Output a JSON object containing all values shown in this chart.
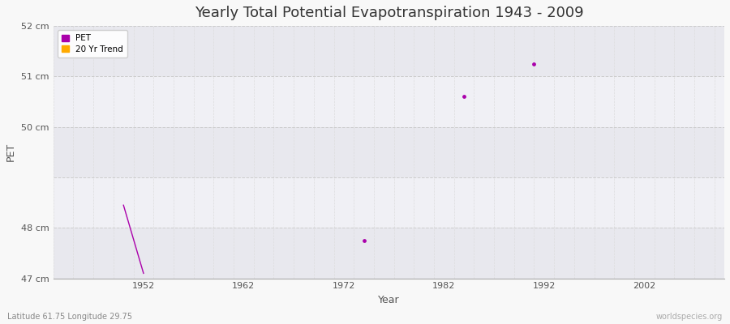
{
  "title": "Yearly Total Potential Evapotranspiration 1943 - 2009",
  "xlabel": "Year",
  "ylabel": "PET",
  "subtitle_lat_lon": "Latitude 61.75 Longitude 29.75",
  "watermark": "worldspecies.org",
  "xlim": [
    1943,
    2010
  ],
  "ylim": [
    47.0,
    52.0
  ],
  "yticks": [
    47,
    48,
    49,
    50,
    51,
    52
  ],
  "ytick_labels": [
    "47 cm",
    "48 cm",
    "",
    "50 cm",
    "51 cm",
    "52 cm"
  ],
  "xticks": [
    1952,
    1962,
    1972,
    1982,
    1992,
    2002
  ],
  "pet_color": "#aa00aa",
  "trend_color": "#ffaa00",
  "bg_color": "#f8f8f8",
  "band_dark": "#e8e8ee",
  "band_light": "#f0f0f5",
  "line_x": [
    1950,
    1952
  ],
  "line_y": [
    48.45,
    47.1
  ],
  "scatter_x": [
    1974,
    1984,
    1991
  ],
  "scatter_y": [
    47.75,
    50.6,
    51.25
  ],
  "legend_pet_label": "PET",
  "legend_trend_label": "20 Yr Trend",
  "title_fontsize": 13,
  "axis_label_fontsize": 9,
  "tick_fontsize": 8,
  "grid_color": "#cccccc",
  "grid_minor_color": "#dddddd"
}
